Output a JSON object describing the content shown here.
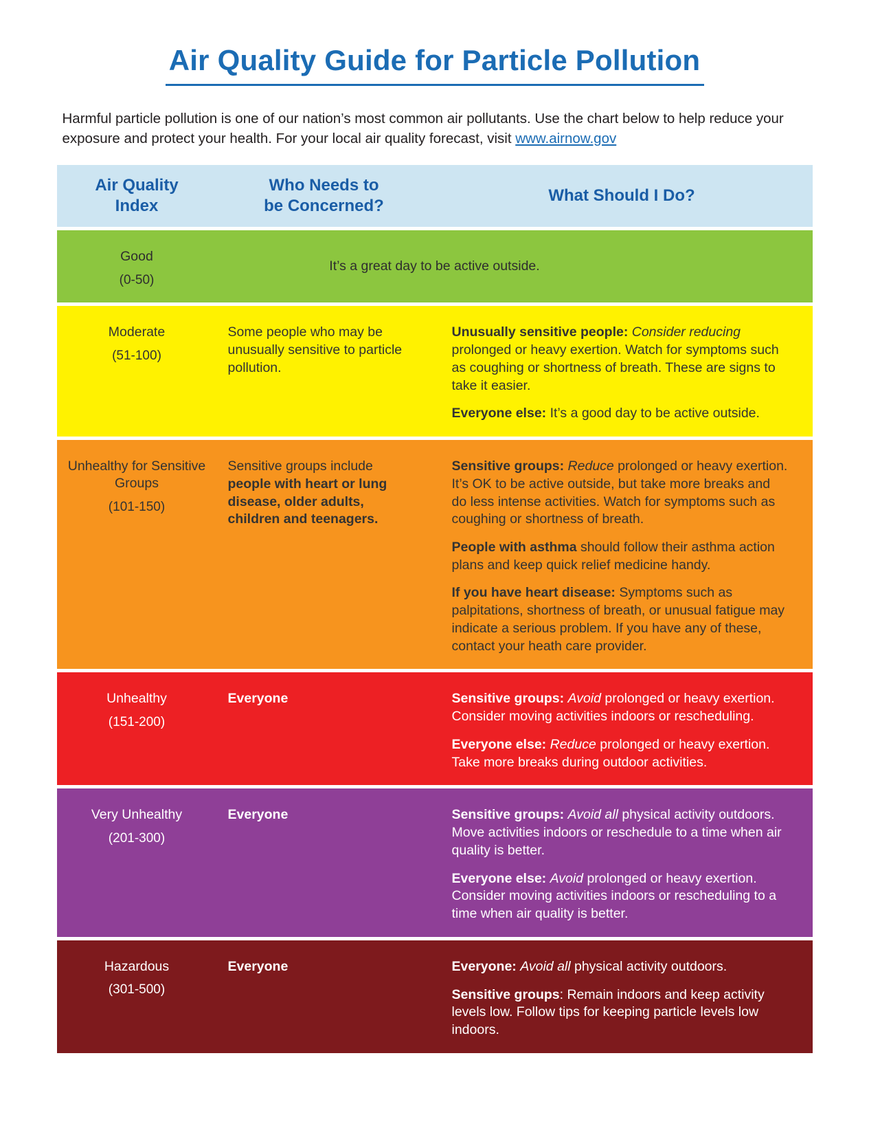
{
  "page": {
    "title": "Air Quality Guide for Particle Pollution",
    "intro_text": "Harmful particle pollution is one of our nation’s most common air pollutants. Use the chart below to help reduce your exposure and protect your health. For your local air quality forecast, visit ",
    "intro_link": "www.airnow.gov"
  },
  "colors": {
    "title_blue": "#1b6cb4",
    "header_bg": "#cde5f2",
    "header_text": "#1a5da6",
    "link_blue": "#1b6cb4"
  },
  "table": {
    "headers": [
      "Air Quality\nIndex",
      "Who Needs to\nbe Concerned?",
      "What Should I Do?"
    ],
    "rows": [
      {
        "id": "good",
        "name": "Good",
        "range": "(0-50)",
        "bg": "#8cc63f",
        "text_color": "#2e2e2e",
        "merged_text": "It’s a great day to be active outside."
      },
      {
        "id": "moderate",
        "name": "Moderate",
        "range": "(51-100)",
        "bg": "#fff200",
        "text_color": "#333333",
        "concerned": [
          {
            "t": "Some people who may be unusually sensitive to particle pollution."
          }
        ],
        "actions": [
          [
            {
              "t": "Unusually sensitive people: ",
              "b": true
            },
            {
              "t": "Consider reducing",
              "i": true
            },
            {
              "t": " prolonged or heavy exertion. Watch for symptoms such as coughing or shortness of breath. These are signs to take it easier."
            }
          ],
          [
            {
              "t": "Everyone else: ",
              "b": true
            },
            {
              "t": "It’s a good day to be active outside."
            }
          ]
        ]
      },
      {
        "id": "usg",
        "name": "Unhealthy for Sensitive Groups",
        "range": "(101-150)",
        "bg": "#f7941e",
        "text_color": "#333333",
        "concerned": [
          {
            "t": "Sensitive groups include "
          },
          {
            "t": "people with heart or lung disease, older adults, children and teenagers.",
            "b": true
          }
        ],
        "actions": [
          [
            {
              "t": "Sensitive groups: ",
              "b": true
            },
            {
              "t": "Reduce",
              "i": true
            },
            {
              "t": " prolonged or heavy exertion.  It’s OK to be active outside, but take more breaks and do less intense activities.  Watch for symptoms such as coughing or shortness of breath."
            }
          ],
          [
            {
              "t": "People with asthma",
              "b": true
            },
            {
              "t": " should follow their asthma action plans and keep quick relief medicine handy."
            }
          ],
          [
            {
              "t": "If you have heart disease: ",
              "b": true
            },
            {
              "t": "Symptoms such as palpitations, shortness of breath, or unusual fatigue may indicate a serious problem. If you have any of these, contact your heath care provider."
            }
          ]
        ]
      },
      {
        "id": "unhealthy",
        "name": "Unhealthy",
        "range": "(151-200)",
        "bg": "#ed2024",
        "text_color": "#ffffff",
        "concerned": [
          {
            "t": "Everyone",
            "b": true
          }
        ],
        "actions": [
          [
            {
              "t": "Sensitive groups: ",
              "b": true
            },
            {
              "t": "Avoid",
              "i": true
            },
            {
              "t": " prolonged or heavy exertion. Consider moving activities indoors or rescheduling."
            }
          ],
          [
            {
              "t": "Everyone else: ",
              "b": true
            },
            {
              "t": "Reduce",
              "i": true
            },
            {
              "t": " prolonged or heavy exertion. Take more breaks during outdoor activities."
            }
          ]
        ]
      },
      {
        "id": "very-unhealthy",
        "name": "Very Unhealthy",
        "range": "(201-300)",
        "bg": "#8f3f97",
        "text_color": "#ffffff",
        "concerned": [
          {
            "t": "Everyone",
            "b": true
          }
        ],
        "actions": [
          [
            {
              "t": "Sensitive groups: ",
              "b": true
            },
            {
              "t": "Avoid all",
              "i": true
            },
            {
              "t": " physical activity outdoors. Move activities indoors or reschedule to a time when air quality is better."
            }
          ],
          [
            {
              "t": "Everyone else: ",
              "b": true
            },
            {
              "t": "Avoid",
              "i": true
            },
            {
              "t": " prolonged or heavy exertion. Consider moving activities indoors or rescheduling to a time when air quality is better."
            }
          ]
        ]
      },
      {
        "id": "hazardous",
        "name": "Hazardous",
        "range": "(301-500)",
        "bg": "#7e1a1d",
        "text_color": "#ffffff",
        "concerned": [
          {
            "t": "Everyone",
            "b": true
          }
        ],
        "actions": [
          [
            {
              "t": "Everyone: ",
              "b": true
            },
            {
              "t": "Avoid all",
              "i": true
            },
            {
              "t": " physical activity outdoors."
            }
          ],
          [
            {
              "t": "Sensitive groups",
              "b": true
            },
            {
              "t": ": Remain indoors and keep activity levels low. Follow tips for keeping particle levels low indoors."
            }
          ]
        ]
      }
    ]
  }
}
